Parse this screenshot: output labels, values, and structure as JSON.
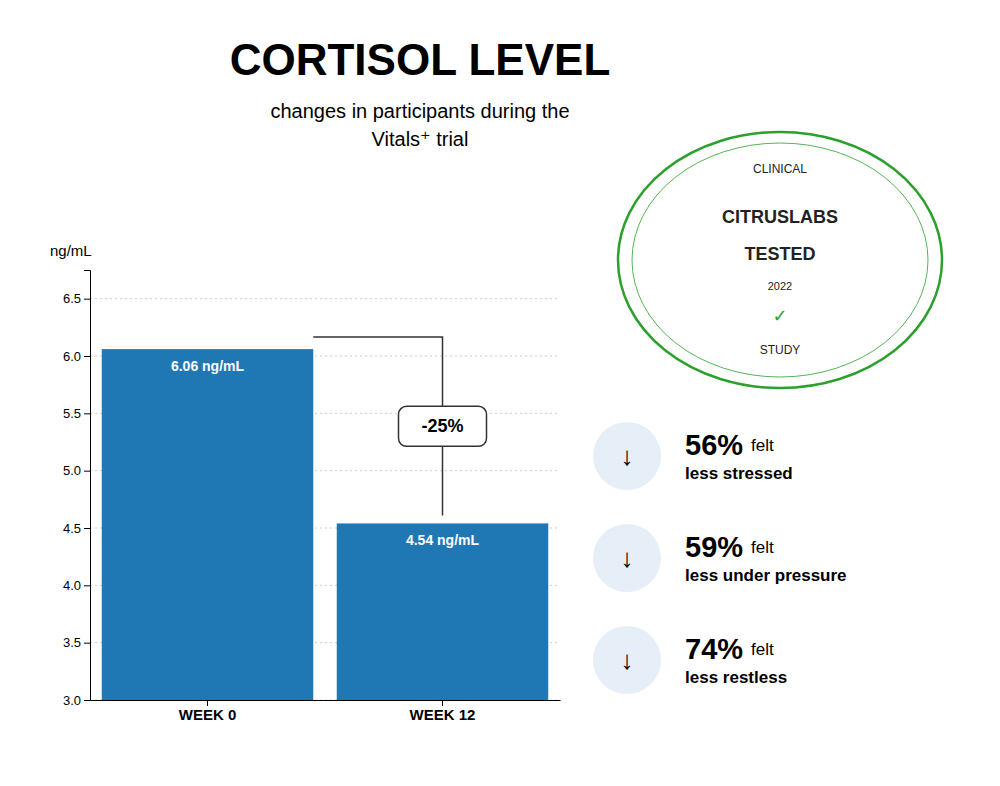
{
  "chart_data": {
    "type": "bar",
    "title": "CORTISOL LEVEL",
    "subtitle": [
      "changes in participants during the",
      "Vitals⁺ trial"
    ],
    "ylabel": "ng/mL",
    "categories": [
      "WEEK 0",
      "WEEK 12"
    ],
    "values": [
      6.06,
      4.54
    ],
    "value_labels": [
      "6.06 ng/mL",
      "4.54 ng/mL"
    ],
    "data_labels": true,
    "ylim": [
      3.0,
      6.75
    ],
    "yticks": [
      {
        "value": 3.0,
        "label": "3.0"
      },
      3.5,
      {
        "value": 4.0,
        "label": "4.0"
      },
      4.5,
      {
        "value": 5.0,
        "label": "5.0"
      },
      5.5,
      {
        "value": 6.0,
        "label": "6.0"
      },
      6.5
    ],
    "grid": true,
    "annotations": [
      "-25%"
    ],
    "badge": [
      "CLINICAL",
      "CITRUSLABS",
      "TESTED",
      "2022",
      "✓",
      "STUDY"
    ],
    "stats": [
      {
        "icon": "↓",
        "pct": "56%",
        "felt": "felt",
        "desc": "less stressed"
      },
      {
        "icon": "↓",
        "pct": "59%",
        "felt": "felt",
        "desc": "less under pressure"
      },
      {
        "icon": "↓",
        "pct": "74%",
        "felt": "felt",
        "desc": "less restless"
      }
    ]
  }
}
